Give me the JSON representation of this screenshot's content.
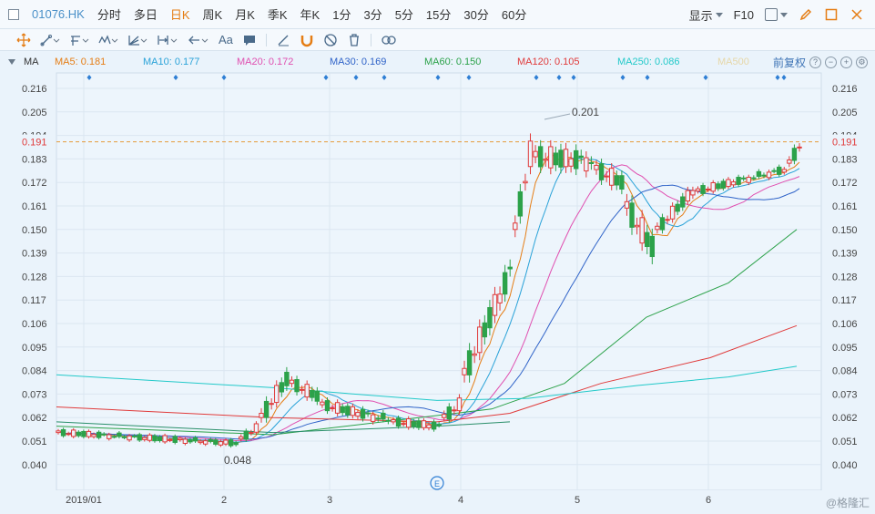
{
  "header": {
    "code": "01076.HK",
    "periods": [
      "分时",
      "多日",
      "日K",
      "周K",
      "月K",
      "季K",
      "年K",
      "1分",
      "3分",
      "5分",
      "15分",
      "30分",
      "60分"
    ],
    "active_period": "日K",
    "display_label": "显示",
    "f10_label": "F10"
  },
  "toolbar": {
    "text_tool": "Aa"
  },
  "ma_bar": {
    "title": "MA",
    "items": [
      {
        "label": "MA5: 0.181",
        "color": "#e57d14"
      },
      {
        "label": "MA10: 0.177",
        "color": "#29a2d8"
      },
      {
        "label": "MA20: 0.172",
        "color": "#e04fb0"
      },
      {
        "label": "MA30: 0.169",
        "color": "#2f63c8"
      },
      {
        "label": "MA60: 0.150",
        "color": "#2ca24a"
      },
      {
        "label": "MA120: 0.105",
        "color": "#e03a3a"
      },
      {
        "label": "MA250: 0.086",
        "color": "#22c9c9"
      },
      {
        "label": "MA500",
        "color": "#e6d7a8"
      }
    ],
    "adjust_label": "前复权"
  },
  "chart_data": {
    "type": "candlestick",
    "ticks": [
      "0.216",
      "0.205",
      "0.194",
      "0.183",
      "0.172",
      "0.161",
      "0.150",
      "0.139",
      "0.128",
      "0.117",
      "0.106",
      "0.095",
      "0.084",
      "0.073",
      "0.062",
      "0.051",
      "0.040"
    ],
    "current_price": "0.191",
    "high_label": "0.201",
    "low_label": "0.048",
    "x_labels": [
      "2019/01",
      "2",
      "3",
      "4",
      "5",
      "6"
    ],
    "event_marker": "E",
    "up_color": "#e03a3a",
    "down_color": "#2ca24a"
  },
  "watermark": "@格隆汇"
}
